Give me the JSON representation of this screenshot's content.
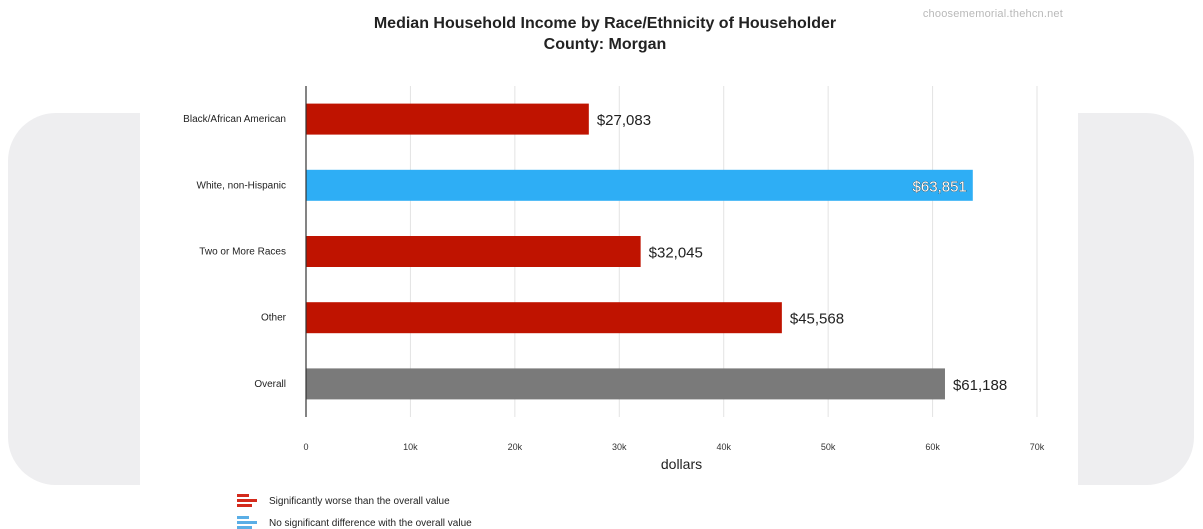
{
  "watermark": "choosememorial.thehcn.net",
  "chart_data": {
    "type": "bar",
    "orientation": "horizontal",
    "title": "Median Household Income by Race/Ethnicity of Householder",
    "subtitle": "County: Morgan",
    "xlabel": "dollars",
    "ylabel": "",
    "xlim": [
      0,
      70000
    ],
    "xticks": [
      {
        "value": 0,
        "label": "0"
      },
      {
        "value": 10000,
        "label": "10k"
      },
      {
        "value": 20000,
        "label": "20k"
      },
      {
        "value": 30000,
        "label": "30k"
      },
      {
        "value": 40000,
        "label": "40k"
      },
      {
        "value": 50000,
        "label": "50k"
      },
      {
        "value": 60000,
        "label": "60k"
      },
      {
        "value": 70000,
        "label": "70k"
      }
    ],
    "grid": true,
    "categories": [
      "Black/African American",
      "White, non-Hispanic",
      "Two or More Races",
      "Other",
      "Overall"
    ],
    "values": [
      27083,
      63851,
      32045,
      45568,
      61188
    ],
    "value_labels": [
      "$27,083",
      "$63,851",
      "$32,045",
      "$45,568",
      "$61,188"
    ],
    "bar_status": [
      "worse",
      "no-difference",
      "worse",
      "worse",
      "overall"
    ],
    "colors": {
      "worse": "#bf1300",
      "no-difference": "#2eaef5",
      "overall": "#7a7a7a",
      "grid": "#e3e3e3",
      "axis": "#333333"
    },
    "legend": [
      {
        "label": "Significantly worse than the overall value",
        "color": "#d42a1c"
      },
      {
        "label": "No significant difference with the overall value",
        "color": "#5aaee6"
      }
    ]
  }
}
